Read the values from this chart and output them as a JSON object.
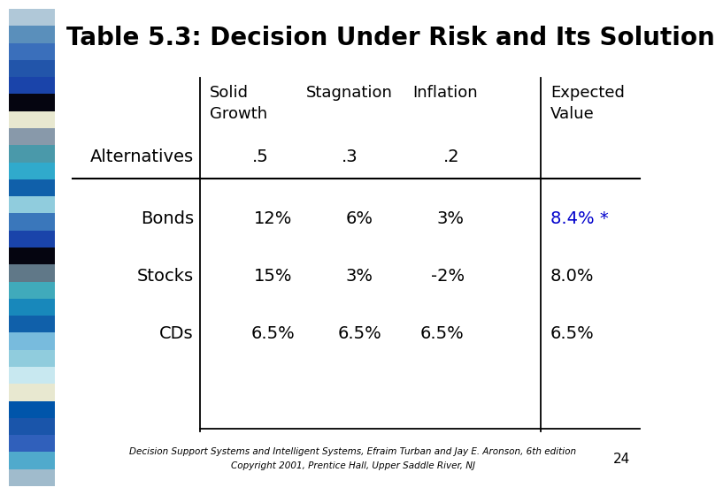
{
  "title": "Table 5.3: Decision Under Risk and Its Solution",
  "title_fontsize": 20,
  "title_color": "#000000",
  "background_color": "#ffffff",
  "sidebar_colors": [
    "#aabbcc",
    "#5588bb",
    "#3366bb",
    "#2255aa",
    "#1144aa",
    "#000000",
    "#eeeedd",
    "#99aabb",
    "#5599aa",
    "#44aacc",
    "#1166aa",
    "#aaccdd",
    "#4477bb",
    "#2244aa",
    "#000000",
    "#667788",
    "#55aacc",
    "#2288bb",
    "#1166aa",
    "#88bbdd",
    "#aaccdd",
    "#ddeeff",
    "#eeeedd",
    "#1166aa",
    "#2255aa",
    "#3366bb",
    "#55aacc",
    "#aabbcc"
  ],
  "col_headers_line1": [
    "Solid",
    "Stagnation",
    "Inflation",
    "Expected"
  ],
  "col_headers_line2": [
    "Growth",
    "",
    "",
    "Value"
  ],
  "prob_row_label": "Alternatives",
  "probabilities": [
    ".5",
    ".3",
    ".2",
    ""
  ],
  "rows": [
    {
      "label": "Bonds",
      "values": [
        "12%",
        "6%",
        "3%",
        "8.4% *"
      ],
      "highlight": [
        false,
        false,
        false,
        true
      ]
    },
    {
      "label": "Stocks",
      "values": [
        "15%",
        "3%",
        "-2%",
        "8.0%"
      ],
      "highlight": [
        false,
        false,
        false,
        false
      ]
    },
    {
      "label": "CDs",
      "values": [
        "6.5%",
        "6.5%",
        "6.5%",
        "6.5%"
      ],
      "highlight": [
        false,
        false,
        false,
        false
      ]
    }
  ],
  "highlight_color": "#0000cc",
  "normal_color": "#000000",
  "footer_line1": "Decision Support Systems and Intelligent Systems, Efraim Turban and Jay E. Aronson, 6th edition",
  "footer_line2": "Copyright 2001, Prentice Hall, Upper Saddle River, NJ",
  "page_number": "24",
  "header_fontsize": 13,
  "cell_fontsize": 14,
  "label_fontsize": 14,
  "footer_fontsize": 7.5
}
